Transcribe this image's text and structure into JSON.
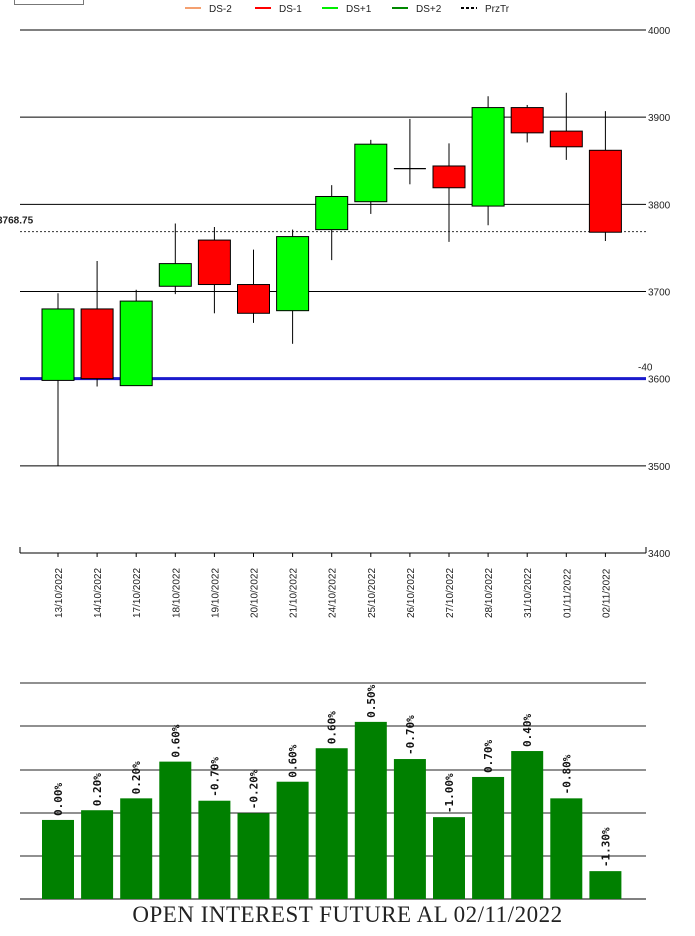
{
  "top_box": "",
  "chart_data": [
    {
      "type": "candlestick",
      "legend": [
        {
          "label": "DS-2",
          "color": "#f4a070",
          "style": "solid"
        },
        {
          "label": "DS-1",
          "color": "#ff0000",
          "style": "solid"
        },
        {
          "label": "DS+1",
          "color": "#00ee00",
          "style": "solid"
        },
        {
          "label": "DS+2",
          "color": "#008800",
          "style": "solid"
        },
        {
          "label": "PrzTr",
          "color": "#000000",
          "style": "dashed"
        }
      ],
      "legend_position": "top",
      "ylim": [
        3400,
        4000
      ],
      "yticks": [
        "4000",
        "3900",
        "3800",
        "3700",
        "3600",
        "3500",
        "3400"
      ],
      "grid": true,
      "reference_line": {
        "value": 3768.75,
        "label": "3768.75",
        "style": "dashed"
      },
      "support_line": {
        "value": 3600,
        "label": "-40",
        "color": "#1a1acc"
      },
      "categories": [
        "13/10/2022",
        "14/10/2022",
        "17/10/2022",
        "18/10/2022",
        "19/10/2022",
        "20/10/2022",
        "21/10/2022",
        "24/10/2022",
        "25/10/2022",
        "26/10/2022",
        "27/10/2022",
        "28/10/2022",
        "31/10/2022",
        "01/11/2022",
        "02/11/2022"
      ],
      "candles": [
        {
          "open": 3598,
          "close": 3680,
          "high": 3698,
          "low": 3500,
          "color": "#00ff00"
        },
        {
          "open": 3680,
          "close": 3600,
          "high": 3735,
          "low": 3591,
          "color": "#ff0000"
        },
        {
          "open": 3592,
          "close": 3689,
          "high": 3702,
          "low": 3592,
          "color": "#00ff00"
        },
        {
          "open": 3706,
          "close": 3732,
          "high": 3778,
          "low": 3697,
          "color": "#00ff00"
        },
        {
          "open": 3759,
          "close": 3708,
          "high": 3774,
          "low": 3675,
          "color": "#ff0000"
        },
        {
          "open": 3708,
          "close": 3675,
          "high": 3748,
          "low": 3664,
          "color": "#ff0000"
        },
        {
          "open": 3678,
          "close": 3763,
          "high": 3771,
          "low": 3640,
          "color": "#00ff00"
        },
        {
          "open": 3771,
          "close": 3809,
          "high": 3822,
          "low": 3736,
          "color": "#00ff00"
        },
        {
          "open": 3803,
          "close": 3869,
          "high": 3874,
          "low": 3789,
          "color": "#00ff00"
        },
        {
          "open": 3841,
          "close": 3841,
          "high": 3898,
          "low": 3823,
          "color": "#000000"
        },
        {
          "open": 3844,
          "close": 3819,
          "high": 3870,
          "low": 3757,
          "color": "#ff0000"
        },
        {
          "open": 3798,
          "close": 3911,
          "high": 3924,
          "low": 3776,
          "color": "#00ff00"
        },
        {
          "open": 3911,
          "close": 3882,
          "high": 3914,
          "low": 3871,
          "color": "#ff0000"
        },
        {
          "open": 3884,
          "close": 3866,
          "high": 3928,
          "low": 3851,
          "color": "#ff0000"
        },
        {
          "open": 3862,
          "close": 3768,
          "high": 3907,
          "low": 3758,
          "color": "#ff0000"
        }
      ]
    },
    {
      "type": "bar",
      "title": "OPEN INTEREST FUTURE AL 02/11/2022",
      "categories": [
        "13/10/2022",
        "14/10/2022",
        "17/10/2022",
        "18/10/2022",
        "19/10/2022",
        "20/10/2022",
        "21/10/2022",
        "24/10/2022",
        "25/10/2022",
        "26/10/2022",
        "27/10/2022",
        "28/10/2022",
        "31/10/2022",
        "01/11/2022",
        "02/11/2022"
      ],
      "values": [
        0.0,
        0.2,
        0.2,
        0.6,
        -0.7,
        -0.2,
        0.6,
        0.6,
        0.5,
        -0.7,
        -1.0,
        0.7,
        0.4,
        -0.8,
        -1.3
      ],
      "value_labels": [
        "0.00%",
        "0.20%",
        "0.20%",
        "0.60%",
        "-0.70%",
        "-0.20%",
        "0.60%",
        "0.60%",
        "0.50%",
        "-0.70%",
        "-1.00%",
        "0.70%",
        "0.40%",
        "-0.80%",
        "-1.30%"
      ],
      "bar_heights_relative": [
        0.366,
        0.411,
        0.466,
        0.636,
        0.455,
        0.397,
        0.543,
        0.698,
        0.82,
        0.648,
        0.379,
        0.565,
        0.685,
        0.466,
        0.129
      ],
      "bar_color": "#008000",
      "grid": true
    }
  ]
}
